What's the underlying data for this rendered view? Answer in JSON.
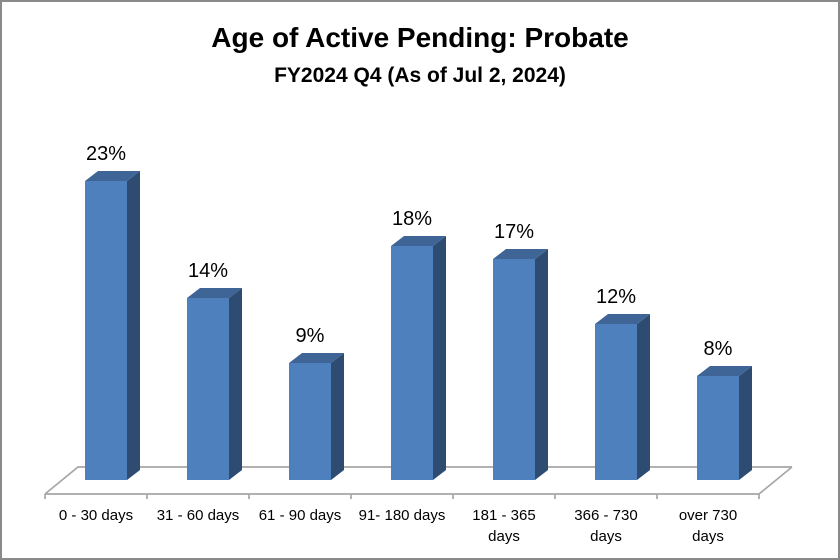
{
  "title": "Age of Active Pending: Probate",
  "subtitle": "FY2024 Q4 (As of Jul 2, 2024)",
  "chart_data": {
    "type": "bar",
    "style": "3d-column",
    "title": "Age of Active Pending: Probate",
    "subtitle": "FY2024 Q4 (As of Jul 2, 2024)",
    "categories": [
      "0 - 30 days",
      "31 - 60 days",
      "61 - 90 days",
      "91- 180 days",
      "181 - 365\ndays",
      "366 - 730\ndays",
      "over 730\ndays"
    ],
    "values": [
      23,
      14,
      9,
      18,
      17,
      12,
      8
    ],
    "data_labels": [
      "23%",
      "14%",
      "9%",
      "18%",
      "17%",
      "12%",
      "8%"
    ],
    "unit": "percent",
    "xlabel": "",
    "ylabel": "",
    "ylim": [
      0,
      25
    ],
    "grid": false,
    "legend": "none",
    "y_axis_visible": false,
    "colors": {
      "bar_front": "#4E80BD",
      "bar_top": "#3E6595",
      "bar_side": "#2E4C72",
      "axis_line": "#A6A6A6",
      "text": "#000000",
      "frame_border": "#8A8A8A",
      "background": "#FFFFFF"
    }
  }
}
